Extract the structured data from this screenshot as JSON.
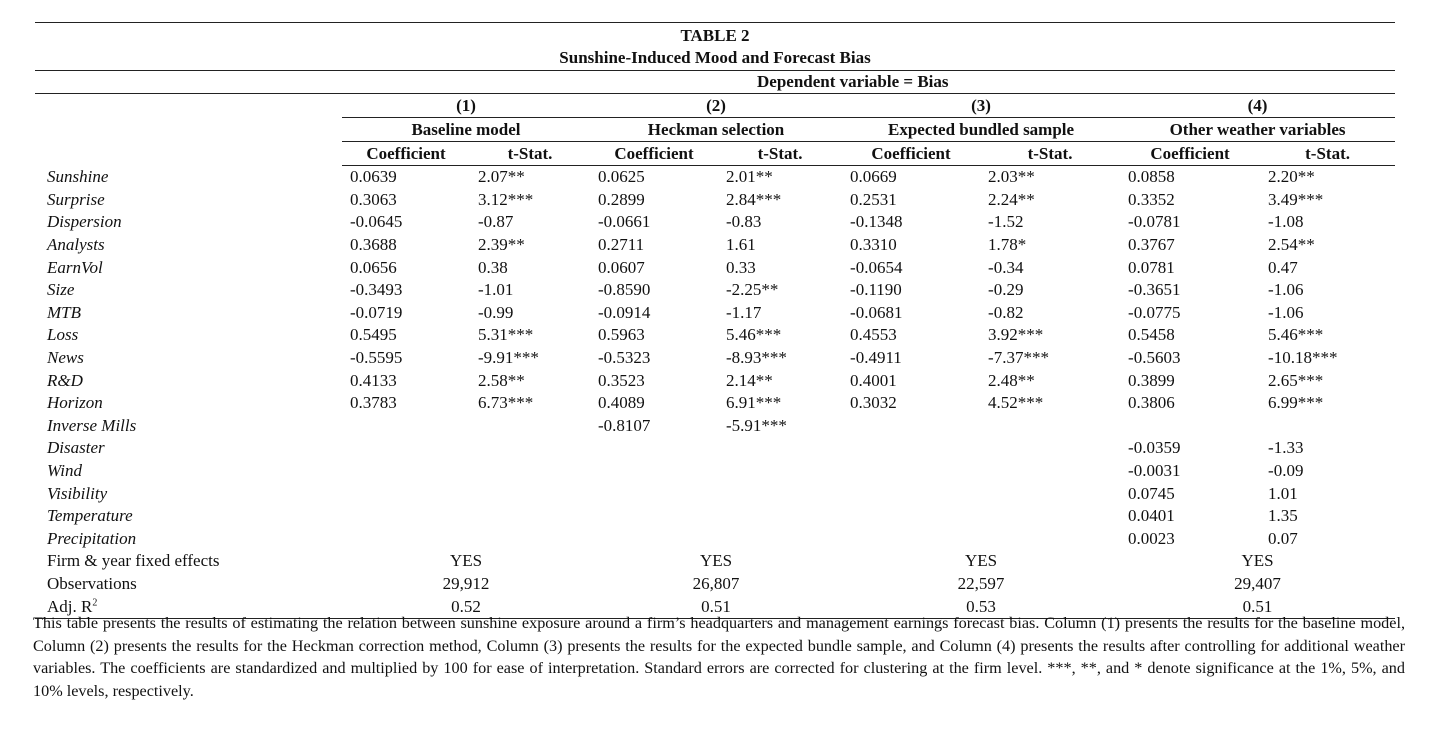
{
  "table": {
    "number": "TABLE 2",
    "title": "Sunshine-Induced Mood and Forecast Bias",
    "dependent": "Dependent variable = Bias",
    "columns": [
      {
        "num": "(1)",
        "name": "Baseline model"
      },
      {
        "num": "(2)",
        "name": "Heckman selection"
      },
      {
        "num": "(3)",
        "name": "Expected bundled sample"
      },
      {
        "num": "(4)",
        "name": "Other weather variables"
      }
    ],
    "coef_label": "Coefficient",
    "tstat_label": "t-Stat.",
    "rows": [
      {
        "var": "Sunshine",
        "vals": [
          "0.0639",
          "2.07**",
          "0.0625",
          "2.01**",
          "0.0669",
          "2.03**",
          "0.0858",
          "2.20**"
        ]
      },
      {
        "var": "Surprise",
        "vals": [
          "0.3063",
          "3.12***",
          "0.2899",
          "2.84***",
          "0.2531",
          "2.24**",
          "0.3352",
          "3.49***"
        ]
      },
      {
        "var": "Dispersion",
        "vals": [
          "-0.0645",
          "-0.87",
          "-0.0661",
          "-0.83",
          "-0.1348",
          "-1.52",
          "-0.0781",
          "-1.08"
        ]
      },
      {
        "var": "Analysts",
        "vals": [
          "0.3688",
          "2.39**",
          "0.2711",
          "1.61",
          "0.3310",
          "1.78*",
          "0.3767",
          "2.54**"
        ]
      },
      {
        "var": "EarnVol",
        "vals": [
          "0.0656",
          "0.38",
          "0.0607",
          "0.33",
          "-0.0654",
          "-0.34",
          "0.0781",
          "0.47"
        ]
      },
      {
        "var": "Size",
        "vals": [
          "-0.3493",
          "-1.01",
          "-0.8590",
          "-2.25**",
          "-0.1190",
          "-0.29",
          "-0.3651",
          "-1.06"
        ]
      },
      {
        "var": "MTB",
        "vals": [
          "-0.0719",
          "-0.99",
          "-0.0914",
          "-1.17",
          "-0.0681",
          "-0.82",
          "-0.0775",
          "-1.06"
        ]
      },
      {
        "var": "Loss",
        "vals": [
          "0.5495",
          "5.31***",
          "0.5963",
          "5.46***",
          "0.4553",
          "3.92***",
          "0.5458",
          "5.46***"
        ]
      },
      {
        "var": "News",
        "vals": [
          "-0.5595",
          "-9.91***",
          "-0.5323",
          "-8.93***",
          "-0.4911",
          "-7.37***",
          "-0.5603",
          "-10.18***"
        ]
      },
      {
        "var": "R&D",
        "vals": [
          "0.4133",
          "2.58**",
          "0.3523",
          "2.14**",
          "0.4001",
          "2.48**",
          "0.3899",
          "2.65***"
        ]
      },
      {
        "var": "Horizon",
        "vals": [
          "0.3783",
          "6.73***",
          "0.4089",
          "6.91***",
          "0.3032",
          "4.52***",
          "0.3806",
          "6.99***"
        ]
      },
      {
        "var": "Inverse Mills",
        "vals": [
          "",
          "",
          "-0.8107",
          "-5.91***",
          "",
          "",
          "",
          ""
        ]
      },
      {
        "var": "Disaster",
        "vals": [
          "",
          "",
          "",
          "",
          "",
          "",
          "-0.0359",
          "-1.33"
        ]
      },
      {
        "var": "Wind",
        "vals": [
          "",
          "",
          "",
          "",
          "",
          "",
          "-0.0031",
          "-0.09"
        ]
      },
      {
        "var": "Visibility",
        "vals": [
          "",
          "",
          "",
          "",
          "",
          "",
          "0.0745",
          "1.01"
        ]
      },
      {
        "var": "Temperature",
        "vals": [
          "",
          "",
          "",
          "",
          "",
          "",
          "0.0401",
          "1.35"
        ]
      },
      {
        "var": "Precipitation",
        "vals": [
          "",
          "",
          "",
          "",
          "",
          "",
          "0.0023",
          "0.07"
        ]
      }
    ],
    "summary": [
      {
        "label": "Firm & year fixed effects",
        "vals": [
          "YES",
          "YES",
          "YES",
          "YES"
        ]
      },
      {
        "label": "Observations",
        "vals": [
          "29,912",
          "26,807",
          "22,597",
          "29,407"
        ]
      },
      {
        "label": "Adj. R",
        "sup": "2",
        "vals": [
          "0.52",
          "0.51",
          "0.53",
          "0.51"
        ]
      }
    ]
  },
  "caption": "This table presents the results of estimating the relation between sunshine exposure around a firm’s headquarters and management earnings forecast bias. Column (1) presents the results for the baseline model, Column (2) presents the results for the Heckman correction method, Column (3) presents the results for the expected bundle sample, and Column (4) presents the results after controlling for additional weather variables. The coefficients are standardized and multiplied by 100 for ease of interpretation. Standard errors are corrected for clustering at the firm level. ***, **, and * denote significance at the 1%, 5%, and 10% levels, respectively."
}
